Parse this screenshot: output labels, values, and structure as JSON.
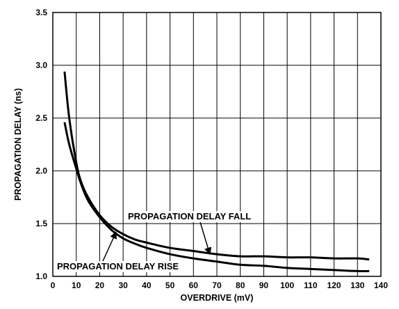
{
  "chart_data": {
    "type": "line",
    "xlabel": "OVERDRIVE (mV)",
    "ylabel": "PROPAGATION DELAY (ns)",
    "xlim": [
      0,
      140
    ],
    "ylim": [
      1.0,
      3.5
    ],
    "xticks": [
      0,
      10,
      20,
      30,
      40,
      50,
      60,
      70,
      80,
      90,
      100,
      110,
      120,
      130,
      140
    ],
    "yticks": [
      1.0,
      1.5,
      2.0,
      2.5,
      3.0,
      3.5
    ],
    "xtick_labels": [
      "0",
      "10",
      "20",
      "30",
      "40",
      "50",
      "60",
      "70",
      "80",
      "90",
      "100",
      "110",
      "120",
      "130",
      "140"
    ],
    "ytick_labels": [
      "1.0",
      "1.5",
      "2.0",
      "2.5",
      "3.0",
      "3.5"
    ],
    "grid": true,
    "series": [
      {
        "name": "PROPAGATION DELAY FALL",
        "x": [
          5,
          7,
          10,
          12,
          15,
          20,
          25,
          30,
          35,
          40,
          50,
          60,
          70,
          80,
          90,
          100,
          110,
          120,
          130,
          135
        ],
        "y": [
          2.94,
          2.5,
          2.08,
          1.9,
          1.75,
          1.58,
          1.47,
          1.4,
          1.35,
          1.32,
          1.27,
          1.24,
          1.21,
          1.19,
          1.19,
          1.18,
          1.18,
          1.17,
          1.17,
          1.16
        ]
      },
      {
        "name": "PROPAGATION DELAY RISE",
        "x": [
          5,
          7,
          10,
          12,
          15,
          20,
          25,
          30,
          35,
          40,
          50,
          60,
          70,
          80,
          90,
          100,
          110,
          120,
          130,
          135
        ],
        "y": [
          2.46,
          2.25,
          2.02,
          1.88,
          1.72,
          1.56,
          1.44,
          1.36,
          1.31,
          1.27,
          1.21,
          1.17,
          1.14,
          1.11,
          1.1,
          1.08,
          1.07,
          1.06,
          1.05,
          1.05
        ]
      }
    ],
    "annotations": [
      {
        "text": "PROPAGATION DELAY FALL",
        "target_series": 0,
        "arrow_to": [
          67,
          1.21
        ]
      },
      {
        "text": "PROPAGATION DELAY RISE",
        "target_series": 1,
        "arrow_to": [
          27,
          1.42
        ]
      }
    ]
  }
}
